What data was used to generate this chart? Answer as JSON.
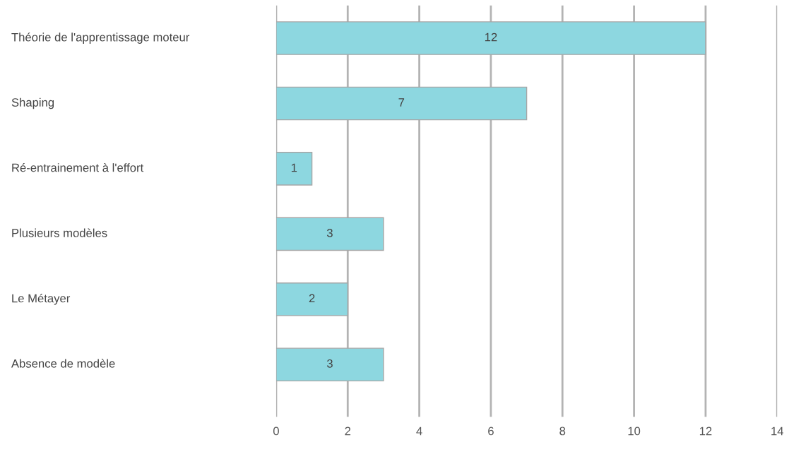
{
  "chart_data": {
    "type": "bar",
    "orientation": "horizontal",
    "categories": [
      "Théorie de l'apprentissage moteur",
      "Shaping",
      "Ré-entrainement à l'effort",
      "Plusieurs modèles",
      "Le Métayer",
      "Absence de modèle"
    ],
    "values": [
      12,
      7,
      1,
      3,
      2,
      3
    ],
    "color": "#8dd7e0",
    "xlim": [
      0,
      14
    ],
    "xticks": [
      0,
      2,
      4,
      6,
      8,
      10,
      12,
      14
    ],
    "grid": "x",
    "data_labels": true
  }
}
